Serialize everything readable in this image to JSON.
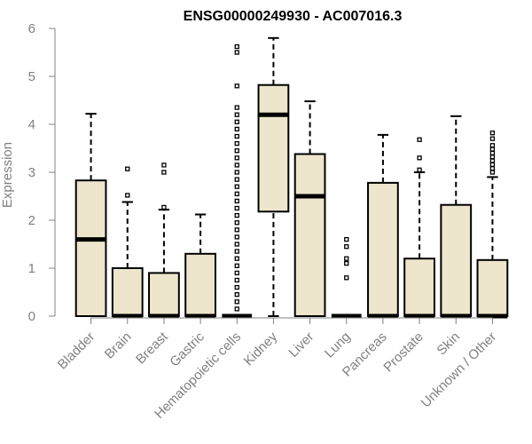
{
  "chart_data": {
    "type": "boxplot",
    "title": "ENSG00000249930 - AC007016.3",
    "xlabel": "",
    "ylabel": "Expression",
    "ylim": [
      0,
      6
    ],
    "yticks": [
      0,
      1,
      2,
      3,
      4,
      5,
      6
    ],
    "grid": false,
    "colors": {
      "box_fill": "#ede6cc",
      "stroke": "#000000",
      "axis": "#808080"
    },
    "categories": [
      "Bladder",
      "Brain",
      "Breast",
      "Gastric",
      "Hematopoietic cells",
      "Kidney",
      "Liver",
      "Lung",
      "Pancreas",
      "Prostate",
      "Skin",
      "Unknown / Other"
    ],
    "series": [
      {
        "category": "Bladder",
        "min": 0,
        "q1": 0,
        "median": 1.6,
        "q3": 2.83,
        "max": 4.22,
        "outliers": []
      },
      {
        "category": "Brain",
        "min": 0,
        "q1": 0,
        "median": 0,
        "q3": 1.0,
        "max": 2.38,
        "outliers": [
          2.52,
          3.07
        ]
      },
      {
        "category": "Breast",
        "min": 0,
        "q1": 0,
        "median": 0,
        "q3": 0.9,
        "max": 2.22,
        "outliers": [
          2.27,
          3.0,
          3.15
        ]
      },
      {
        "category": "Gastric",
        "min": 0,
        "q1": 0,
        "median": 0,
        "q3": 1.3,
        "max": 2.12,
        "outliers": []
      },
      {
        "category": "Hematopoietic cells",
        "min": 0,
        "q1": 0,
        "median": 0,
        "q3": 0,
        "max": 0,
        "outliers": [
          0.15,
          0.3,
          0.45,
          0.6,
          0.75,
          0.9,
          1.05,
          1.2,
          1.35,
          1.5,
          1.65,
          1.8,
          1.95,
          2.1,
          2.25,
          2.4,
          2.55,
          2.7,
          2.85,
          3.0,
          3.15,
          3.3,
          3.45,
          3.6,
          3.75,
          3.9,
          4.05,
          4.2,
          4.35,
          4.8,
          5.5,
          5.62
        ]
      },
      {
        "category": "Kidney",
        "min": 0,
        "q1": 2.18,
        "median": 4.2,
        "q3": 4.82,
        "max": 5.8,
        "outliers": []
      },
      {
        "category": "Liver",
        "min": 0,
        "q1": 0,
        "median": 2.5,
        "q3": 3.38,
        "max": 4.48,
        "outliers": []
      },
      {
        "category": "Lung",
        "min": 0,
        "q1": 0,
        "median": 0,
        "q3": 0,
        "max": 0,
        "outliers": [
          0.8,
          1.1,
          1.2,
          1.45,
          1.6
        ]
      },
      {
        "category": "Pancreas",
        "min": 0,
        "q1": 0,
        "median": 0,
        "q3": 2.78,
        "max": 3.78,
        "outliers": []
      },
      {
        "category": "Prostate",
        "min": 0,
        "q1": 0,
        "median": 0,
        "q3": 1.2,
        "max": 3.0,
        "outliers": [
          3.05,
          3.3,
          3.68
        ]
      },
      {
        "category": "Skin",
        "min": 0,
        "q1": 0,
        "median": 0,
        "q3": 2.32,
        "max": 4.17,
        "outliers": []
      },
      {
        "category": "Unknown / Other",
        "min": 0,
        "q1": 0,
        "median": 0,
        "q3": 1.17,
        "max": 2.9,
        "outliers": [
          3.0,
          3.08,
          3.16,
          3.24,
          3.32,
          3.4,
          3.48,
          3.56,
          3.7,
          3.82
        ]
      }
    ]
  }
}
